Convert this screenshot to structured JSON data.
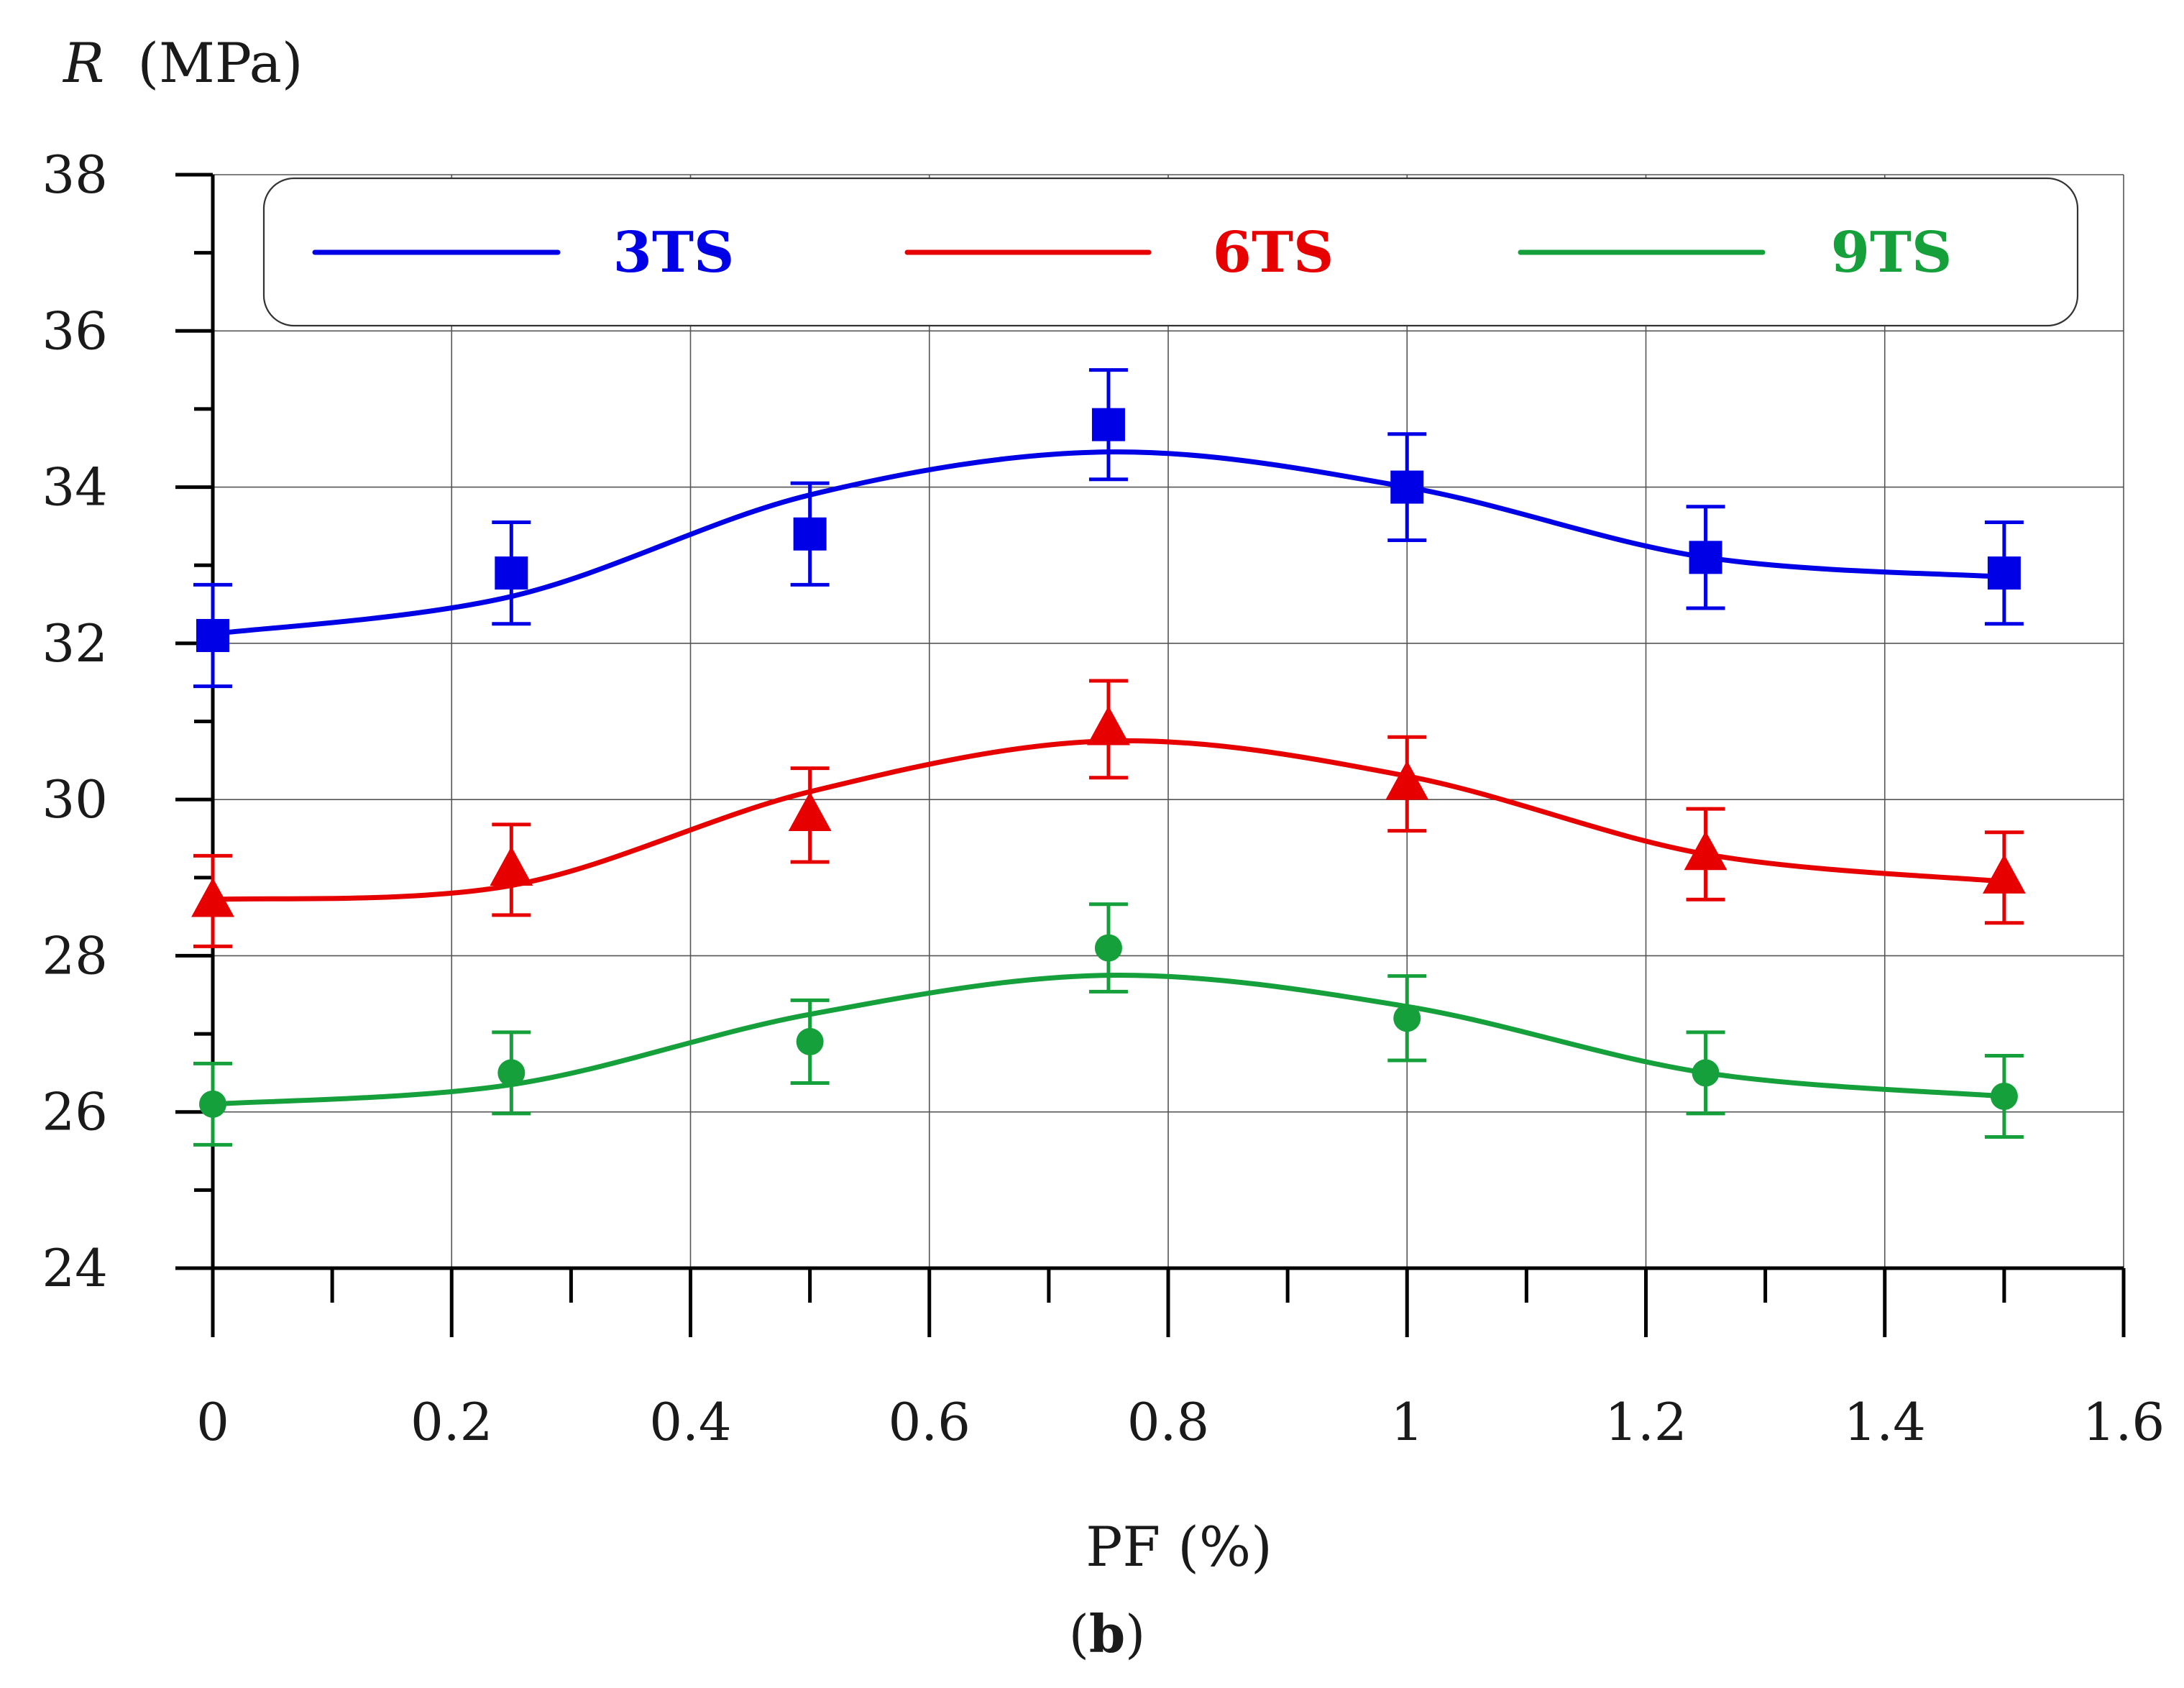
{
  "chart_data": {
    "type": "line",
    "ylabel_symbol": "R",
    "ylabel_unit": "(MPa)",
    "xlabel": "PF (%)",
    "panel_label": "(b)",
    "panel_label_letter": "b",
    "xlim": [
      0,
      1.6
    ],
    "ylim": [
      24,
      38
    ],
    "x_ticks": [
      "0",
      "0.2",
      "0.4",
      "0.6",
      "0.8",
      "1",
      "1.2",
      "1.4",
      "1.6"
    ],
    "y_ticks": [
      "24",
      "26",
      "28",
      "30",
      "32",
      "34",
      "36",
      "38"
    ],
    "x": [
      0,
      0.25,
      0.5,
      0.75,
      1.0,
      1.25,
      1.5
    ],
    "legend_position": "top",
    "series": [
      {
        "name": "3TS",
        "color": "#0000e6",
        "marker": "square",
        "values": [
          32.1,
          32.9,
          33.4,
          34.8,
          34.0,
          33.1,
          32.9
        ],
        "error": [
          0.65,
          0.65,
          0.65,
          0.7,
          0.68,
          0.65,
          0.65
        ],
        "fit_values": [
          32.12,
          32.6,
          33.9,
          34.45,
          34.0,
          33.1,
          32.85
        ]
      },
      {
        "name": "6TS",
        "color": "#e60000",
        "marker": "triangle",
        "values": [
          28.7,
          29.1,
          29.8,
          30.9,
          30.2,
          29.3,
          29.0
        ],
        "error": [
          0.58,
          0.58,
          0.6,
          0.62,
          0.6,
          0.58,
          0.58
        ],
        "fit_values": [
          28.72,
          28.9,
          30.1,
          30.75,
          30.3,
          29.3,
          28.95
        ]
      },
      {
        "name": "9TS",
        "color": "#16a03c",
        "marker": "circle",
        "values": [
          26.1,
          26.5,
          26.9,
          28.1,
          27.2,
          26.5,
          26.2
        ],
        "error": [
          0.52,
          0.52,
          0.53,
          0.56,
          0.54,
          0.52,
          0.52
        ],
        "fit_values": [
          26.1,
          26.35,
          27.25,
          27.75,
          27.35,
          26.5,
          26.2
        ]
      }
    ]
  }
}
